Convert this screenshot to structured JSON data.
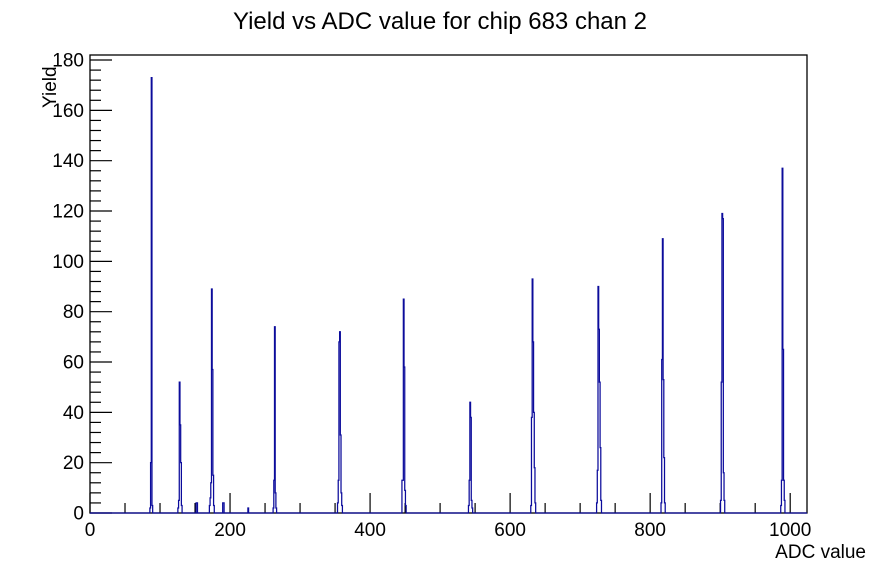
{
  "title": "Yield vs ADC value for chip 683 chan 2",
  "chart_data": {
    "type": "bar",
    "subtype": "histogram-outline",
    "title": "Yield vs ADC value for chip 683 chan 2",
    "xlabel": "ADC value",
    "ylabel": "Yield",
    "xlim": [
      0,
      1024
    ],
    "ylim": [
      0,
      182
    ],
    "grid": false,
    "legend": "none",
    "line_color": "#0b0b9b",
    "axis_color": "#000000",
    "background_color": "#ffffff",
    "x_major_ticks": [
      0,
      200,
      400,
      600,
      800,
      1000
    ],
    "x_minor_step": 50,
    "y_major_ticks": [
      0,
      20,
      40,
      60,
      80,
      100,
      120,
      140,
      160,
      180
    ],
    "y_minor_step": 4,
    "peaks": [
      {
        "adc": 88,
        "yield": 173
      },
      {
        "adc": 128,
        "yield": 52
      },
      {
        "adc": 174,
        "yield": 89
      },
      {
        "adc": 264,
        "yield": 74
      },
      {
        "adc": 357,
        "yield": 72
      },
      {
        "adc": 448,
        "yield": 85
      },
      {
        "adc": 543,
        "yield": 44
      },
      {
        "adc": 632,
        "yield": 93
      },
      {
        "adc": 726,
        "yield": 90
      },
      {
        "adc": 818,
        "yield": 109
      },
      {
        "adc": 903,
        "yield": 119
      },
      {
        "adc": 989,
        "yield": 137
      }
    ],
    "bins": [
      [
        86,
        2
      ],
      [
        87,
        20
      ],
      [
        88,
        173
      ],
      [
        89,
        3
      ],
      [
        126,
        2
      ],
      [
        127,
        5
      ],
      [
        128,
        52
      ],
      [
        129,
        35
      ],
      [
        130,
        20
      ],
      [
        131,
        3
      ],
      [
        152,
        4
      ],
      [
        153,
        4
      ],
      [
        171,
        3
      ],
      [
        172,
        6
      ],
      [
        173,
        12
      ],
      [
        174,
        89
      ],
      [
        175,
        57
      ],
      [
        176,
        15
      ],
      [
        177,
        3
      ],
      [
        190,
        4
      ],
      [
        191,
        4
      ],
      [
        226,
        2
      ],
      [
        262,
        2
      ],
      [
        263,
        13
      ],
      [
        264,
        74
      ],
      [
        265,
        8
      ],
      [
        266,
        2
      ],
      [
        354,
        4
      ],
      [
        355,
        13
      ],
      [
        356,
        68
      ],
      [
        357,
        72
      ],
      [
        358,
        31
      ],
      [
        359,
        8
      ],
      [
        360,
        3
      ],
      [
        446,
        13
      ],
      [
        447,
        13
      ],
      [
        448,
        85
      ],
      [
        449,
        58
      ],
      [
        450,
        9
      ],
      [
        451,
        3
      ],
      [
        541,
        3
      ],
      [
        542,
        13
      ],
      [
        543,
        44
      ],
      [
        544,
        38
      ],
      [
        545,
        5
      ],
      [
        546,
        2
      ],
      [
        630,
        3
      ],
      [
        631,
        38
      ],
      [
        632,
        93
      ],
      [
        633,
        68
      ],
      [
        634,
        40
      ],
      [
        635,
        18
      ],
      [
        636,
        4
      ],
      [
        724,
        4
      ],
      [
        725,
        17
      ],
      [
        726,
        90
      ],
      [
        727,
        73
      ],
      [
        728,
        52
      ],
      [
        729,
        26
      ],
      [
        730,
        5
      ],
      [
        816,
        4
      ],
      [
        817,
        61
      ],
      [
        818,
        109
      ],
      [
        819,
        53
      ],
      [
        820,
        22
      ],
      [
        821,
        4
      ],
      [
        901,
        5
      ],
      [
        902,
        52
      ],
      [
        903,
        119
      ],
      [
        904,
        117
      ],
      [
        905,
        16
      ],
      [
        906,
        5
      ],
      [
        987,
        3
      ],
      [
        988,
        13
      ],
      [
        989,
        137
      ],
      [
        990,
        65
      ],
      [
        991,
        13
      ],
      [
        992,
        5
      ]
    ]
  }
}
